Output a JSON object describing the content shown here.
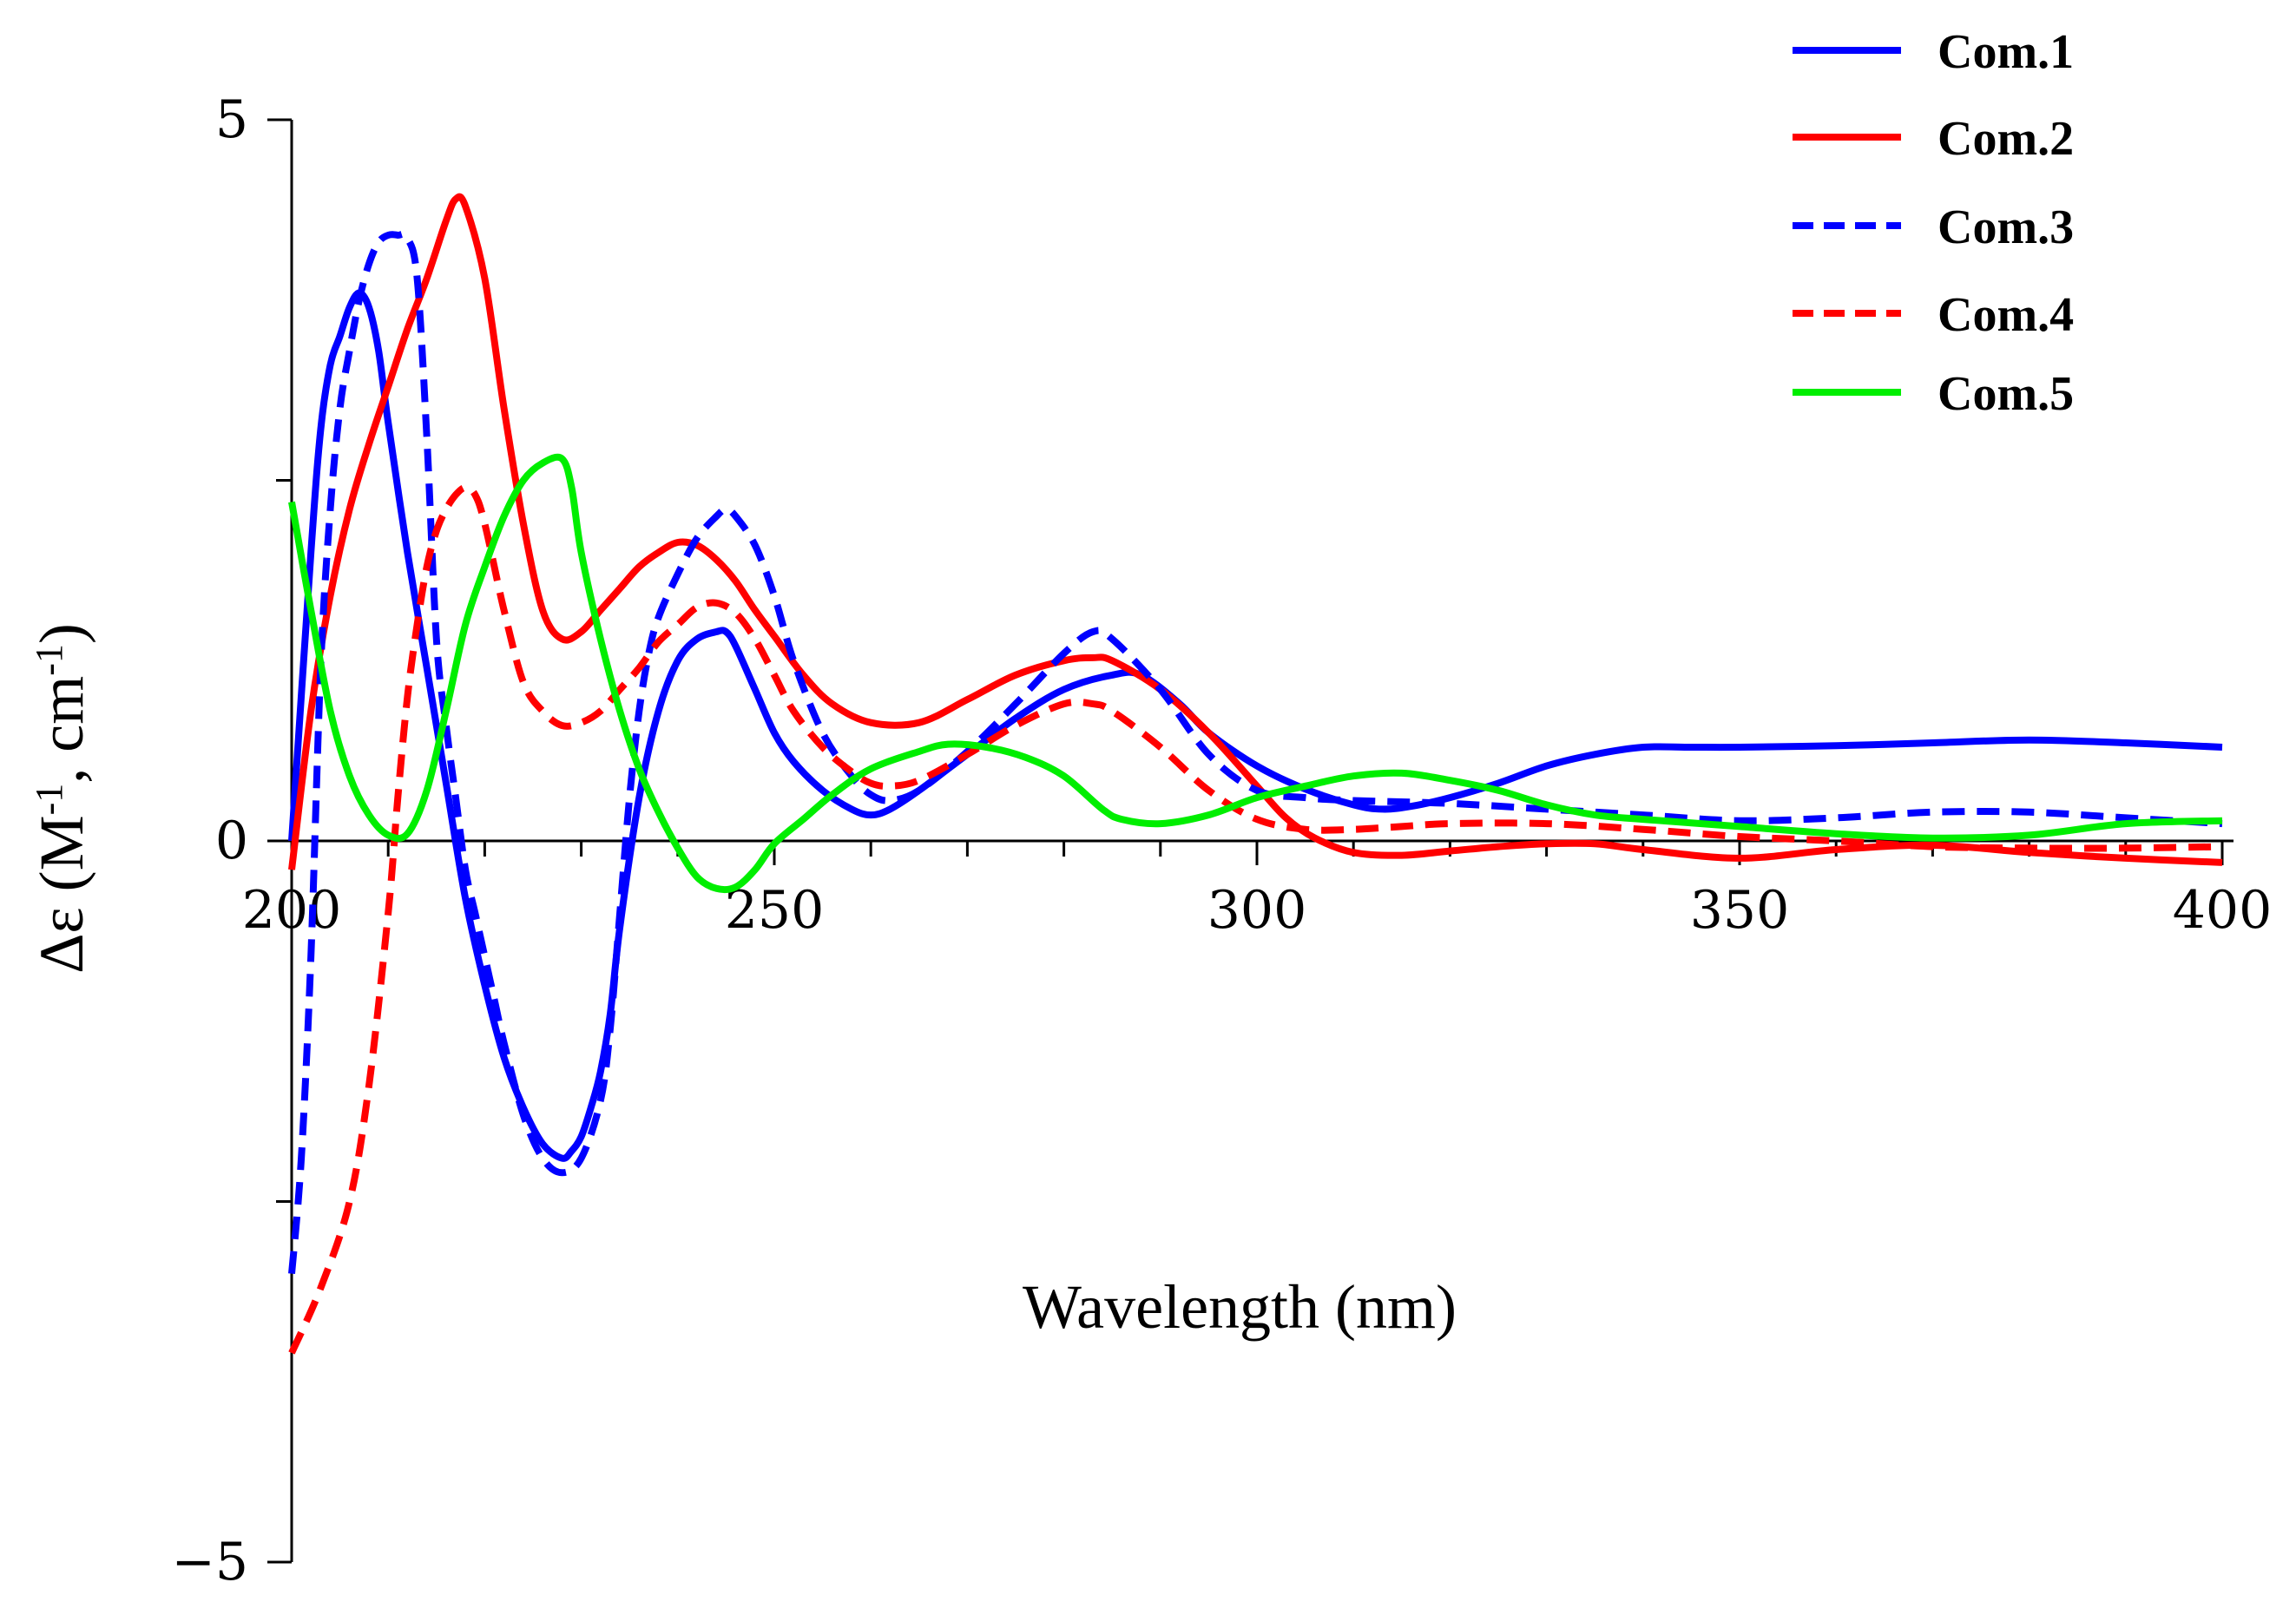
{
  "chart_data": {
    "type": "line",
    "title": "",
    "xlabel": "Wavelength (nm)",
    "ylabel_parts": {
      "prefix": "Δε (M",
      "sup1": "-1",
      "mid": ", cm",
      "sup2": "-1",
      "suffix": ")"
    },
    "xlim": [
      200,
      400
    ],
    "ylim": [
      -5,
      5
    ],
    "x_ticks": [
      200,
      250,
      300,
      350,
      400
    ],
    "y_ticks": [
      5,
      0,
      -5
    ],
    "y_tick_labels": [
      "5",
      "0",
      "−5"
    ],
    "x_minor_step": 10,
    "y_minor_step": 2.5,
    "legend_position": "top-right",
    "series": [
      {
        "name": "Com.1",
        "color": "#0000ff",
        "dash": "solid",
        "x": [
          200,
          202,
          203,
          204,
          205,
          206,
          207,
          208,
          209,
          210,
          212,
          214,
          216,
          218,
          220,
          222,
          224,
          226,
          228,
          229,
          230,
          231,
          232,
          233,
          234,
          236,
          238,
          240,
          242,
          244,
          245,
          246,
          248,
          250,
          252,
          255,
          258,
          260,
          262,
          265,
          270,
          275,
          280,
          285,
          288,
          292,
          295,
          300,
          305,
          310,
          313,
          316,
          320,
          325,
          330,
          335,
          340,
          345,
          350,
          360,
          370,
          380,
          390,
          400
        ],
        "y": [
          0,
          2.0,
          2.85,
          3.3,
          3.5,
          3.7,
          3.8,
          3.7,
          3.4,
          2.9,
          2.0,
          1.2,
          0.4,
          -0.4,
          -1.0,
          -1.5,
          -1.85,
          -2.1,
          -2.2,
          -2.15,
          -2.05,
          -1.85,
          -1.6,
          -1.2,
          -0.6,
          0.3,
          0.9,
          1.25,
          1.4,
          1.45,
          1.45,
          1.35,
          1.05,
          0.75,
          0.55,
          0.35,
          0.22,
          0.18,
          0.22,
          0.35,
          0.6,
          0.85,
          1.05,
          1.15,
          1.15,
          0.95,
          0.75,
          0.52,
          0.36,
          0.25,
          0.22,
          0.24,
          0.3,
          0.4,
          0.52,
          0.6,
          0.65,
          0.65,
          0.65,
          0.66,
          0.68,
          0.7,
          0.68,
          0.65
        ]
      },
      {
        "name": "Com.2",
        "color": "#ff0000",
        "dash": "solid",
        "x": [
          200,
          202,
          204,
          206,
          208,
          210,
          212,
          214,
          216,
          217,
          218,
          220,
          222,
          224,
          226,
          228,
          230,
          232,
          234,
          236,
          238,
          240,
          242,
          244,
          246,
          248,
          250,
          253,
          256,
          260,
          265,
          270,
          275,
          280,
          283,
          285,
          290,
          295,
          300,
          303,
          306,
          310,
          315,
          320,
          325,
          330,
          335,
          340,
          350,
          360,
          370,
          380,
          390,
          400
        ],
        "y": [
          -0.2,
          0.9,
          1.7,
          2.3,
          2.75,
          3.15,
          3.55,
          3.9,
          4.3,
          4.45,
          4.4,
          3.9,
          3.0,
          2.2,
          1.6,
          1.4,
          1.45,
          1.6,
          1.75,
          1.9,
          2.0,
          2.07,
          2.05,
          1.95,
          1.8,
          1.6,
          1.42,
          1.15,
          0.95,
          0.82,
          0.82,
          0.98,
          1.15,
          1.25,
          1.27,
          1.25,
          1.05,
          0.75,
          0.38,
          0.16,
          0.02,
          -0.08,
          -0.1,
          -0.07,
          -0.04,
          -0.02,
          -0.02,
          -0.06,
          -0.12,
          -0.06,
          -0.03,
          -0.08,
          -0.12,
          -0.15
        ]
      },
      {
        "name": "Com.3",
        "color": "#0000ff",
        "dash": "dashed",
        "x": [
          200,
          201,
          202,
          203,
          204,
          205,
          206,
          207,
          208,
          209,
          210,
          211,
          212,
          213,
          214,
          215,
          216,
          217,
          218,
          219,
          220,
          221,
          222,
          224,
          226,
          228,
          230,
          232,
          233,
          234,
          235,
          236,
          237,
          238,
          240,
          242,
          244,
          245,
          246,
          248,
          250,
          252,
          255,
          258,
          260,
          262,
          265,
          270,
          275,
          280,
          283,
          285,
          290,
          295,
          300,
          305,
          310,
          320,
          330,
          340,
          350,
          360,
          370,
          380,
          390,
          400
        ],
        "y": [
          -3.0,
          -2.2,
          -0.8,
          1.2,
          2.3,
          3.0,
          3.4,
          3.75,
          4.0,
          4.15,
          4.2,
          4.2,
          4.18,
          3.9,
          2.8,
          1.4,
          0.8,
          0.3,
          -0.2,
          -0.5,
          -0.8,
          -1.1,
          -1.4,
          -1.9,
          -2.2,
          -2.3,
          -2.2,
          -1.8,
          -1.3,
          -0.5,
          0.3,
          0.9,
          1.3,
          1.55,
          1.85,
          2.1,
          2.25,
          2.3,
          2.25,
          2.05,
          1.7,
          1.25,
          0.75,
          0.45,
          0.32,
          0.28,
          0.35,
          0.62,
          0.95,
          1.3,
          1.45,
          1.4,
          1.05,
          0.6,
          0.35,
          0.3,
          0.28,
          0.26,
          0.22,
          0.18,
          0.14,
          0.16,
          0.2,
          0.2,
          0.16,
          0.12
        ]
      },
      {
        "name": "Com.4",
        "color": "#ff0000",
        "dash": "dashed",
        "x": [
          200,
          203,
          206,
          208,
          210,
          211,
          212,
          213,
          214,
          215,
          216,
          217,
          218,
          219,
          220,
          222,
          224,
          226,
          228,
          230,
          232,
          234,
          236,
          238,
          240,
          242,
          244,
          246,
          248,
          250,
          252,
          255,
          258,
          260,
          262,
          265,
          270,
          275,
          280,
          283,
          285,
          290,
          295,
          300,
          305,
          310,
          315,
          320,
          330,
          340,
          350,
          360,
          370,
          380,
          390,
          400
        ],
        "y": [
          -3.55,
          -3.1,
          -2.5,
          -1.7,
          -0.5,
          0.3,
          1.0,
          1.5,
          1.9,
          2.15,
          2.3,
          2.4,
          2.45,
          2.4,
          2.2,
          1.6,
          1.1,
          0.9,
          0.8,
          0.82,
          0.9,
          1.05,
          1.2,
          1.38,
          1.5,
          1.62,
          1.65,
          1.58,
          1.4,
          1.15,
          0.9,
          0.65,
          0.48,
          0.4,
          0.38,
          0.42,
          0.6,
          0.8,
          0.95,
          0.95,
          0.9,
          0.65,
          0.35,
          0.15,
          0.08,
          0.08,
          0.1,
          0.12,
          0.12,
          0.08,
          0.03,
          0.0,
          -0.04,
          -0.05,
          -0.05,
          -0.04
        ]
      },
      {
        "name": "Com.5",
        "color": "#00ee00",
        "dash": "solid",
        "x": [
          200,
          202,
          204,
          206,
          208,
          210,
          212,
          214,
          216,
          218,
          220,
          222,
          224,
          226,
          228,
          229,
          230,
          232,
          234,
          236,
          238,
          240,
          242,
          244,
          246,
          248,
          250,
          253,
          256,
          260,
          265,
          268,
          272,
          276,
          280,
          284,
          286,
          290,
          295,
          300,
          305,
          310,
          315,
          320,
          325,
          330,
          335,
          340,
          350,
          360,
          370,
          380,
          390,
          400
        ],
        "y": [
          2.35,
          1.6,
          0.9,
          0.45,
          0.18,
          0.04,
          0.05,
          0.35,
          0.9,
          1.5,
          1.9,
          2.25,
          2.5,
          2.62,
          2.65,
          2.45,
          2.0,
          1.4,
          0.9,
          0.5,
          0.2,
          -0.05,
          -0.25,
          -0.33,
          -0.32,
          -0.2,
          -0.02,
          0.15,
          0.32,
          0.5,
          0.62,
          0.67,
          0.65,
          0.58,
          0.45,
          0.22,
          0.15,
          0.12,
          0.18,
          0.3,
          0.38,
          0.45,
          0.47,
          0.42,
          0.35,
          0.25,
          0.18,
          0.15,
          0.1,
          0.05,
          0.02,
          0.04,
          0.12,
          0.14
        ]
      }
    ]
  }
}
